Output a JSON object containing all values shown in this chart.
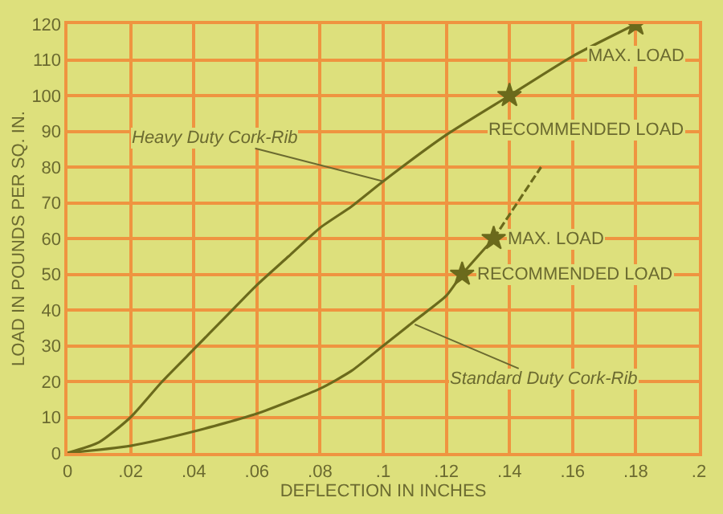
{
  "chart_data": {
    "type": "line",
    "xlabel": "DEFLECTION IN INCHES",
    "ylabel": "LOAD IN POUNDS PER SQ. IN.",
    "xlim": [
      0,
      0.2
    ],
    "ylim": [
      0,
      120
    ],
    "xticks": [
      0,
      {
        "value": 0.02,
        "label": ".02"
      },
      {
        "value": 0.04,
        "label": ".04"
      },
      {
        "value": 0.06,
        "label": ".06"
      },
      {
        "value": 0.08,
        "label": ".08"
      },
      {
        "value": 0.1,
        "label": ".1"
      },
      {
        "value": 0.12,
        "label": ".12"
      },
      {
        "value": 0.14,
        "label": ".14"
      },
      {
        "value": 0.16,
        "label": ".16"
      },
      {
        "value": 0.18,
        "label": ".18"
      },
      {
        "value": 0.2,
        "label": ".2"
      }
    ],
    "yticks": [
      0,
      10,
      20,
      30,
      40,
      50,
      60,
      70,
      80,
      90,
      100,
      110,
      120
    ],
    "grid": true,
    "legend": false,
    "series": [
      {
        "color": "#6b6a1c",
        "line_style": "solid",
        "x": [
          0,
          0.01,
          0.02,
          0.03,
          0.04,
          0.05,
          0.06,
          0.07,
          0.08,
          0.09,
          0.1,
          0.12,
          0.14,
          0.16,
          0.18
        ],
        "values": [
          0,
          3,
          10,
          20,
          29,
          38,
          47,
          55,
          63,
          69,
          76,
          89,
          100,
          111,
          120
        ]
      },
      {
        "color": "#6b6a1c",
        "line_style": "solid",
        "x": [
          0,
          0.02,
          0.04,
          0.06,
          0.08,
          0.09,
          0.1,
          0.11,
          0.12,
          0.125,
          0.135
        ],
        "values": [
          0,
          2,
          6,
          11,
          18,
          23,
          30,
          37,
          44,
          50,
          60
        ]
      },
      {
        "color": "#6b6a1c",
        "line_style": "dashed",
        "x": [
          0.135,
          0.15
        ],
        "values": [
          60,
          80
        ]
      },
      {
        "type": "scatter",
        "color": "#6b6a1c",
        "marker": "star",
        "x": [
          0.14,
          0.18,
          0.125,
          0.135
        ],
        "values": [
          100,
          120,
          50,
          60
        ]
      }
    ],
    "annotations": [
      {
        "text": "Heavy Duty Cork-Rib",
        "x": 0.1,
        "y": 76
      },
      {
        "text": "Standard Duty Cork-Rib",
        "x": 0.11,
        "y": 36
      },
      {
        "text": "MAX. LOAD",
        "x": 0.18,
        "y": 120
      },
      {
        "text": "RECOMMENDED LOAD",
        "x": 0.14,
        "y": 100
      },
      {
        "text": "MAX. LOAD",
        "x": 0.135,
        "y": 60
      },
      {
        "text": "RECOMMENDED LOAD",
        "x": 0.125,
        "y": 50
      }
    ]
  }
}
